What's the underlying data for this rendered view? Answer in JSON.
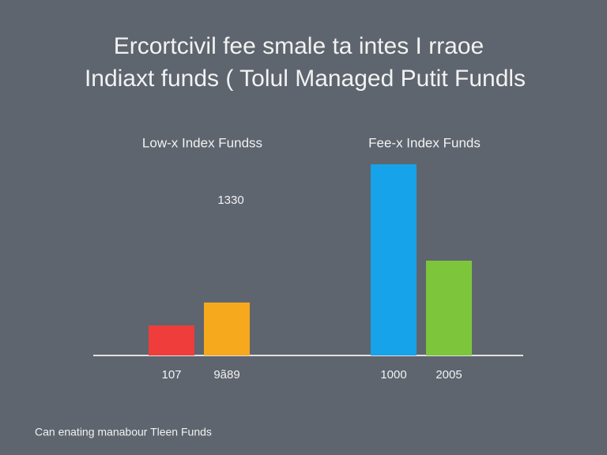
{
  "chart_data": {
    "type": "bar",
    "title": "Ercortcivil fee smale ta intes I rraoe",
    "subtitle": "Indiaxt funds ( Tolul Managed Putit Fundls",
    "groups": [
      {
        "label": "Low-x Index Fundss",
        "members": [
          0,
          1
        ]
      },
      {
        "label": "Fee-x Index Funds",
        "members": [
          2,
          3
        ]
      }
    ],
    "categories": [
      "107",
      "9ã89",
      "1000",
      "2005"
    ],
    "values": [
      38,
      67,
      242,
      120
    ],
    "colors": [
      "#ef3d3b",
      "#f6a91d",
      "#16a3ea",
      "#7dc63b"
    ],
    "annotation": "1330",
    "footnote": "Can enating manabour Tleen Funds"
  }
}
